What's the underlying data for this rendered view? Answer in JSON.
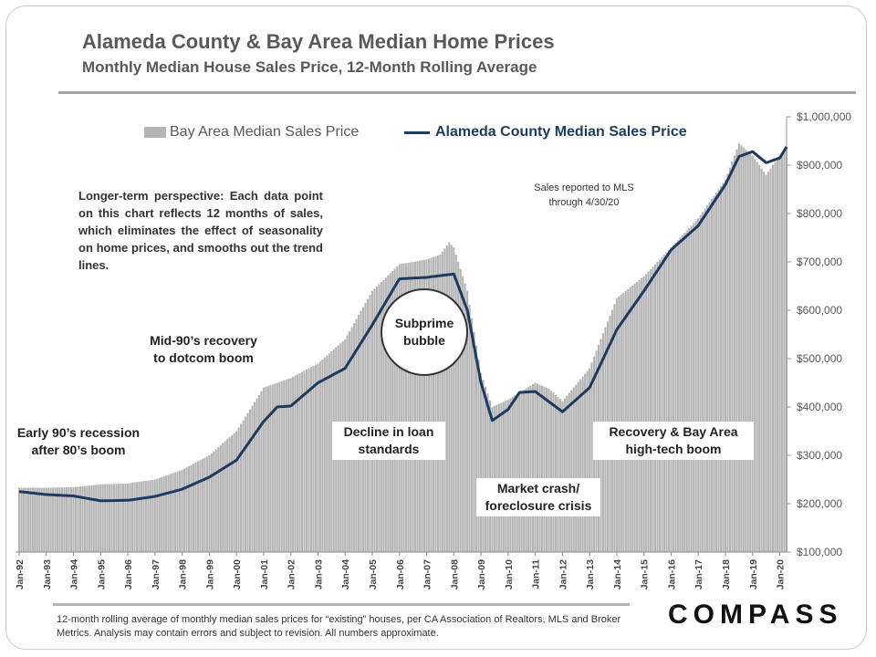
{
  "title": "Alameda County & Bay Area Median Home Prices",
  "subtitle": "Monthly Median House Sales Price, 12-Month Rolling Average",
  "legend": {
    "bay_area": "Bay Area Median Sales Price",
    "alameda": "Alameda County Median Sales Price"
  },
  "notes": {
    "mls": [
      "Sales reported to MLS",
      "through 4/30/20"
    ],
    "perspective": "Longer-term perspective: Each data point on this chart reflects 12 months of sales, which eliminates the effect of seasonality on home prices, and smooths out the trend lines."
  },
  "annotations": {
    "early90s": [
      "Early 90’s recession",
      "after 80’s boom"
    ],
    "mid90s": [
      "Mid-90’s recovery",
      "to dotcom boom"
    ],
    "subprime": [
      "Subprime",
      "bubble"
    ],
    "decline": [
      "Decline in loan",
      "standards"
    ],
    "crash": [
      "Market crash/",
      "foreclosure crisis"
    ],
    "recovery": [
      "Recovery & Bay Area",
      "high-tech boom"
    ]
  },
  "footnote": "12-month rolling average of monthly median sales prices for “existing” houses, per CA Association of Realtors, MLS and Broker Metrics.  Analysis may contain errors and subject to revision. All numbers approximate.",
  "brand": "COMPASS",
  "colors": {
    "bay_bars": "#b4b4b4",
    "alameda_line": "#1f3a5f",
    "text": "#595959"
  },
  "chart_data": {
    "type": "bar",
    "title": "Alameda County & Bay Area Median Home Prices",
    "subtitle": "Monthly Median House Sales Price, 12-Month Rolling Average",
    "ylim": [
      100000,
      1000000
    ],
    "y_ticks": [
      "$100,000",
      "$200,000",
      "$300,000",
      "$400,000",
      "$500,000",
      "$600,000",
      "$700,000",
      "$800,000",
      "$900,000",
      "$1,000,000"
    ],
    "x_ticks": [
      "Jan-92",
      "Jan-93",
      "Jan-94",
      "Jan-95",
      "Jan-96",
      "Jan-97",
      "Jan-98",
      "Jan-99",
      "Jan-00",
      "Jan-01",
      "Jan-02",
      "Jan-03",
      "Jan-04",
      "Jan-05",
      "Jan-06",
      "Jan-07",
      "Jan-08",
      "Jan-09",
      "Jan-10",
      "Jan-11",
      "Jan-12",
      "Jan-13",
      "Jan-14",
      "Jan-15",
      "Jan-16",
      "Jan-17",
      "Jan-18",
      "Jan-19",
      "Jan-20"
    ],
    "x_range": [
      "Jan-92",
      "Apr-20"
    ],
    "legend_position": "top",
    "series": [
      {
        "name": "Bay Area Median Sales Price",
        "style": "bar",
        "points": [
          [
            "Jan-92",
            233000
          ],
          [
            "Jan-93",
            233000
          ],
          [
            "Jan-94",
            234000
          ],
          [
            "Jan-95",
            240000
          ],
          [
            "Jan-96",
            242000
          ],
          [
            "Jan-97",
            250000
          ],
          [
            "Jan-98",
            270000
          ],
          [
            "Jan-99",
            300000
          ],
          [
            "Jan-00",
            350000
          ],
          [
            "Jan-01",
            440000
          ],
          [
            "Jan-02",
            460000
          ],
          [
            "Jan-03",
            490000
          ],
          [
            "Jan-04",
            540000
          ],
          [
            "Jan-05",
            640000
          ],
          [
            "Jan-06",
            695000
          ],
          [
            "Jan-07",
            705000
          ],
          [
            "Jul-07",
            715000
          ],
          [
            "Nov-07",
            740000
          ],
          [
            "Jan-08",
            730000
          ],
          [
            "Jul-08",
            640000
          ],
          [
            "Jan-09",
            470000
          ],
          [
            "Jun-09",
            400000
          ],
          [
            "Jan-10",
            415000
          ],
          [
            "Jan-11",
            450000
          ],
          [
            "Jul-11",
            438000
          ],
          [
            "Jan-12",
            412000
          ],
          [
            "Jan-13",
            480000
          ],
          [
            "Jan-14",
            625000
          ],
          [
            "Jan-15",
            670000
          ],
          [
            "Jan-16",
            730000
          ],
          [
            "Jan-17",
            790000
          ],
          [
            "Jan-18",
            870000
          ],
          [
            "Jul-18",
            945000
          ],
          [
            "Jan-19",
            920000
          ],
          [
            "Jul-19",
            880000
          ],
          [
            "Jan-20",
            920000
          ],
          [
            "Apr-20",
            935000
          ]
        ]
      },
      {
        "name": "Alameda County Median Sales Price",
        "style": "line",
        "points": [
          [
            "Jan-92",
            225000
          ],
          [
            "Jan-93",
            219000
          ],
          [
            "Jan-94",
            216000
          ],
          [
            "Jan-95",
            206000
          ],
          [
            "Jan-96",
            207000
          ],
          [
            "Jan-97",
            215000
          ],
          [
            "Jan-98",
            230000
          ],
          [
            "Jan-99",
            255000
          ],
          [
            "Jan-00",
            290000
          ],
          [
            "Jan-01",
            370000
          ],
          [
            "Jul-01",
            400000
          ],
          [
            "Jan-02",
            402000
          ],
          [
            "Jan-03",
            450000
          ],
          [
            "Jan-04",
            480000
          ],
          [
            "Jan-05",
            570000
          ],
          [
            "Jan-06",
            665000
          ],
          [
            "Jan-07",
            668000
          ],
          [
            "Jan-08",
            675000
          ],
          [
            "Jul-08",
            600000
          ],
          [
            "Jan-09",
            450000
          ],
          [
            "Jun-09",
            372000
          ],
          [
            "Jan-10",
            395000
          ],
          [
            "Jun-10",
            430000
          ],
          [
            "Jan-11",
            432000
          ],
          [
            "Jan-12",
            390000
          ],
          [
            "Jan-13",
            440000
          ],
          [
            "Jan-14",
            560000
          ],
          [
            "Jan-15",
            640000
          ],
          [
            "Jan-16",
            725000
          ],
          [
            "Jan-17",
            775000
          ],
          [
            "Jan-18",
            860000
          ],
          [
            "Jul-18",
            918000
          ],
          [
            "Jan-19",
            928000
          ],
          [
            "Jul-19",
            905000
          ],
          [
            "Jan-20",
            915000
          ],
          [
            "Apr-20",
            938000
          ]
        ]
      }
    ]
  }
}
